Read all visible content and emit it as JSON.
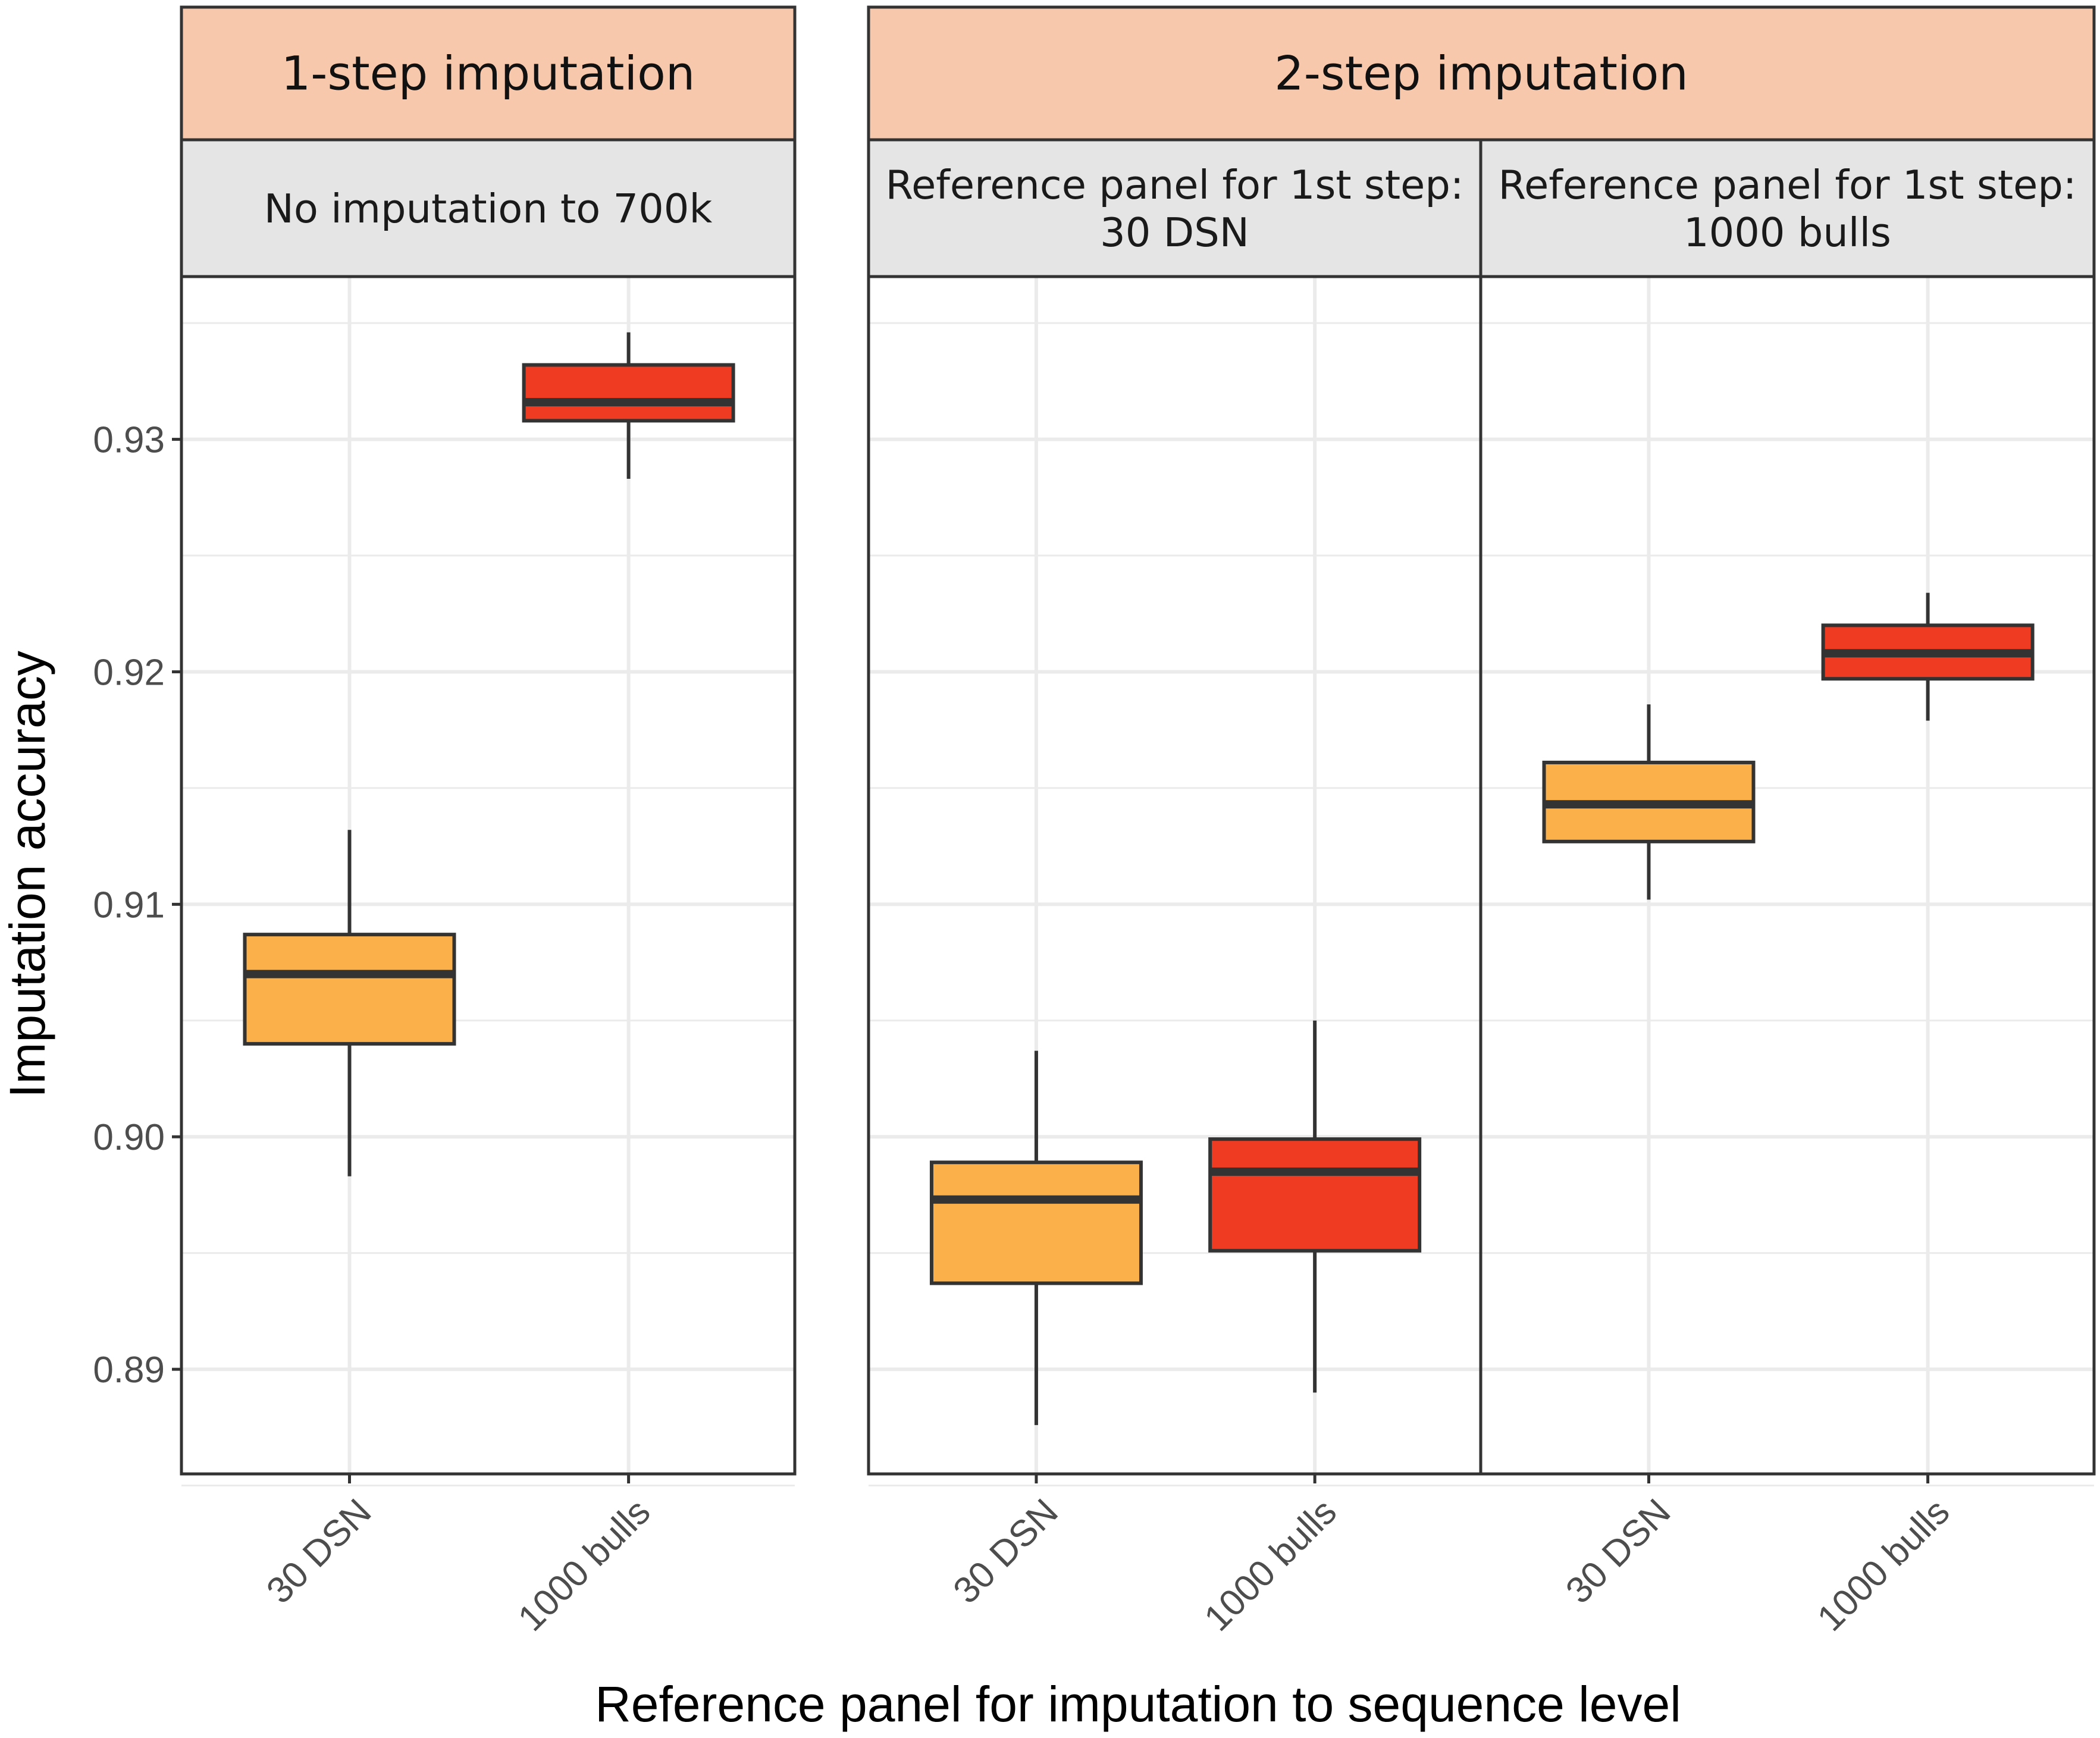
{
  "chart_data": {
    "type": "boxplot",
    "ylabel": "Imputation accuracy",
    "xlabel": "Reference panel for imputation to sequence level",
    "ylim": [
      0.8855,
      0.937
    ],
    "yticks": [
      0.89,
      0.9,
      0.91,
      0.92,
      0.93
    ],
    "ytick_labels": [
      "0.89",
      "0.90",
      "0.91",
      "0.92",
      "0.93"
    ],
    "categories": [
      "30 DSN",
      "1000 bulls"
    ],
    "colors": {
      "30 DSN": "#FBB04A",
      "1000 bulls": "#EE3B22"
    },
    "strip_fill": "#F7C8AB",
    "sub_strip_fill": "#E5E5E5",
    "groups": [
      {
        "title": "1-step imputation",
        "panels": [
          {
            "title": [
              "No imputation to 700k"
            ],
            "boxes": [
              {
                "category": "30 DSN",
                "whisker_low": 0.8983,
                "q1": 0.904,
                "median": 0.907,
                "q3": 0.9087,
                "whisker_high": 0.9132
              },
              {
                "category": "1000 bulls",
                "whisker_low": 0.9283,
                "q1": 0.9308,
                "median": 0.9316,
                "q3": 0.9332,
                "whisker_high": 0.9346
              }
            ]
          }
        ]
      },
      {
        "title": "2-step imputation",
        "panels": [
          {
            "title": [
              "Reference panel for 1st step:",
              "30 DSN"
            ],
            "boxes": [
              {
                "category": "30 DSN",
                "whisker_low": 0.8876,
                "q1": 0.8937,
                "median": 0.8973,
                "q3": 0.8989,
                "whisker_high": 0.9037
              },
              {
                "category": "1000 bulls",
                "whisker_low": 0.889,
                "q1": 0.8951,
                "median": 0.8985,
                "q3": 0.8999,
                "whisker_high": 0.905
              }
            ]
          },
          {
            "title": [
              "Reference panel for 1st step:",
              "1000 bulls"
            ],
            "boxes": [
              {
                "category": "30 DSN",
                "whisker_low": 0.9102,
                "q1": 0.9127,
                "median": 0.9143,
                "q3": 0.9161,
                "whisker_high": 0.9186
              },
              {
                "category": "1000 bulls",
                "whisker_low": 0.9179,
                "q1": 0.9197,
                "median": 0.9208,
                "q3": 0.922,
                "whisker_high": 0.9234
              }
            ]
          }
        ]
      }
    ]
  }
}
